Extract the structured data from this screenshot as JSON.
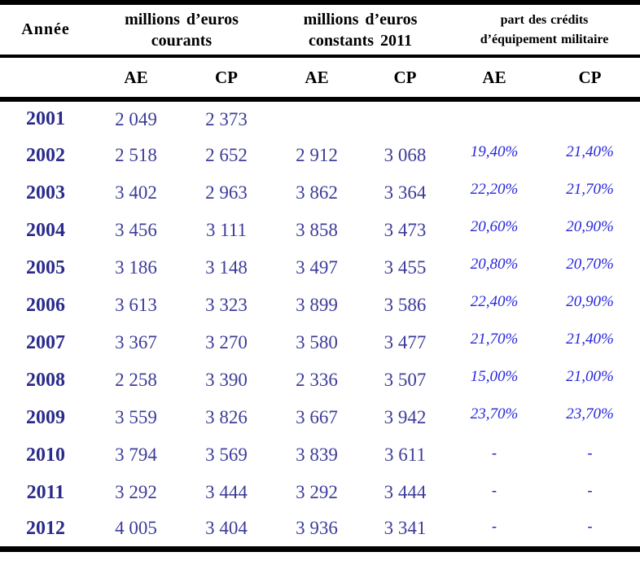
{
  "table": {
    "year_header": "Année",
    "groups": [
      {
        "line1": "millions d’euros",
        "line2": "courants"
      },
      {
        "line1": "millions d’euros",
        "line2": "constants 2011"
      },
      {
        "line1": "part des crédits",
        "line2": "d’équipement militaire"
      }
    ],
    "subheaders": [
      "AE",
      "CP",
      "AE",
      "CP",
      "AE",
      "CP"
    ],
    "rows": [
      {
        "year": "2001",
        "cells": [
          "2 049",
          "2 373",
          "",
          "",
          "",
          ""
        ]
      },
      {
        "year": "2002",
        "cells": [
          "2 518",
          "2 652",
          "2 912",
          "3 068",
          "19,40%",
          "21,40%"
        ]
      },
      {
        "year": "2003",
        "cells": [
          "3 402",
          "2 963",
          "3 862",
          "3 364",
          "22,20%",
          "21,70%"
        ]
      },
      {
        "year": "2004",
        "cells": [
          "3 456",
          "3 111",
          "3 858",
          "3 473",
          "20,60%",
          "20,90%"
        ]
      },
      {
        "year": "2005",
        "cells": [
          "3 186",
          "3 148",
          "3 497",
          "3 455",
          "20,80%",
          "20,70%"
        ]
      },
      {
        "year": "2006",
        "cells": [
          "3 613",
          "3 323",
          "3 899",
          "3 586",
          "22,40%",
          "20,90%"
        ]
      },
      {
        "year": "2007",
        "cells": [
          "3 367",
          "3 270",
          "3 580",
          "3 477",
          "21,70%",
          "21,40%"
        ]
      },
      {
        "year": "2008",
        "cells": [
          "2 258",
          "3 390",
          "2 336",
          "3 507",
          "15,00%",
          "21,00%"
        ]
      },
      {
        "year": "2009",
        "cells": [
          "3 559",
          "3 826",
          "3 667",
          "3 942",
          "23,70%",
          "23,70%"
        ]
      },
      {
        "year": "2010",
        "cells": [
          "3 794",
          "3 569",
          "3 839",
          "3 611",
          "-",
          "-"
        ]
      },
      {
        "year": "2011",
        "cells": [
          "3 292",
          "3 444",
          "3 292",
          "3 444",
          "-",
          "-"
        ]
      },
      {
        "year": "2012",
        "cells": [
          "4 005",
          "3 404",
          "3 936",
          "3 341",
          "-",
          "-"
        ]
      }
    ]
  },
  "colors": {
    "border": "#000000",
    "header_text": "#000000",
    "year_text": "#2B2B8C",
    "value_text": "#3C3C99",
    "percent_text": "#2626DC"
  }
}
